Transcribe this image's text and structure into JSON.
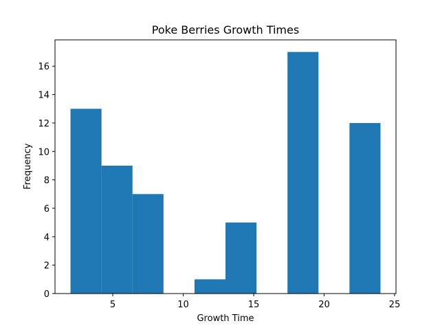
{
  "chart_data": {
    "type": "bar",
    "title": "Poke Berries Growth Times",
    "xlabel": "Growth Time",
    "ylabel": "Frequency",
    "xlim": [
      0.9,
      25.1
    ],
    "ylim": [
      0,
      17.85
    ],
    "xticks": [
      5,
      10,
      15,
      20,
      25
    ],
    "yticks": [
      0,
      2,
      4,
      6,
      8,
      10,
      12,
      14,
      16
    ],
    "bar_color": "#1f77b4",
    "grid": false,
    "bins": [
      {
        "start": 2.0,
        "end": 4.2,
        "value": 13
      },
      {
        "start": 4.2,
        "end": 6.4,
        "value": 9
      },
      {
        "start": 6.4,
        "end": 8.6,
        "value": 7
      },
      {
        "start": 8.6,
        "end": 10.8,
        "value": 0
      },
      {
        "start": 10.8,
        "end": 13.0,
        "value": 1
      },
      {
        "start": 13.0,
        "end": 15.2,
        "value": 5
      },
      {
        "start": 15.2,
        "end": 17.4,
        "value": 0
      },
      {
        "start": 17.4,
        "end": 19.6,
        "value": 17
      },
      {
        "start": 19.6,
        "end": 21.8,
        "value": 0
      },
      {
        "start": 21.8,
        "end": 24.0,
        "value": 12
      }
    ]
  }
}
